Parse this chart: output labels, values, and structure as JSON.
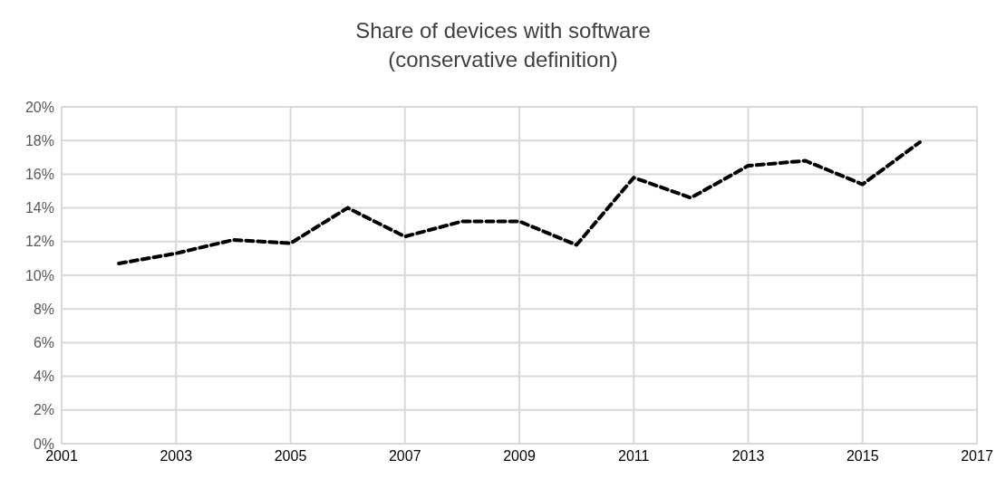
{
  "chart_data": {
    "type": "line",
    "title": "Share of devices with software\n(conservative definition)",
    "x": [
      2002,
      2003,
      2004,
      2005,
      2006,
      2007,
      2008,
      2009,
      2010,
      2011,
      2012,
      2013,
      2014,
      2015,
      2016
    ],
    "series": [
      {
        "color": "#000000",
        "values": [
          10.7,
          11.3,
          12.1,
          11.9,
          14.0,
          12.3,
          13.2,
          13.2,
          11.8,
          15.8,
          14.6,
          16.5,
          16.8,
          15.4,
          17.9
        ]
      }
    ],
    "xlim": [
      2001,
      2017
    ],
    "xticks": [
      2001,
      2003,
      2005,
      2007,
      2009,
      2011,
      2013,
      2015,
      2017
    ],
    "ylim": [
      0,
      20
    ],
    "yticks": [
      {
        "value": 0,
        "label": "0%"
      },
      {
        "value": 2,
        "label": "2%"
      },
      {
        "value": 4,
        "label": "4%"
      },
      {
        "value": 6,
        "label": "6%"
      },
      {
        "value": 8,
        "label": "8%"
      },
      {
        "value": 10,
        "label": "10%"
      },
      {
        "value": 12,
        "label": "12%"
      },
      {
        "value": 14,
        "label": "14%"
      },
      {
        "value": 16,
        "label": "16%"
      },
      {
        "value": 18,
        "label": "18%"
      },
      {
        "value": 20,
        "label": "20%"
      }
    ],
    "grid": true,
    "line_style": "dashed",
    "marker": "none"
  }
}
